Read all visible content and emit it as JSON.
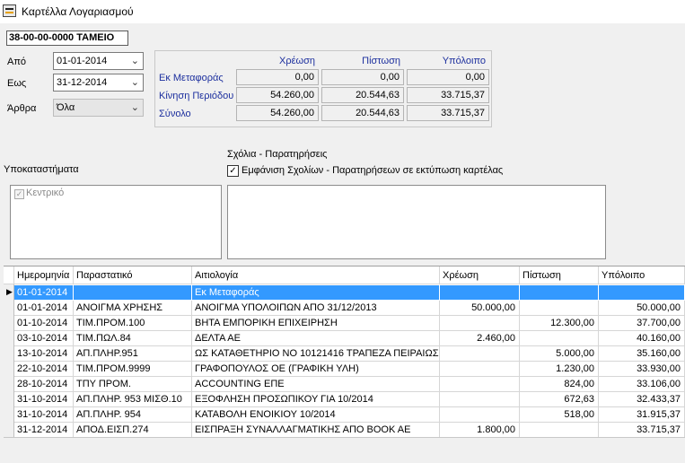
{
  "window": {
    "title": "Καρτέλλα Λογαριασμού",
    "icon": "ledger-icon"
  },
  "account": {
    "code": "38-00-00-0000 ΤΑΜΕΙΟ"
  },
  "filters": {
    "from": {
      "label": "Από",
      "value": "01-01-2014"
    },
    "to": {
      "label": "Εως",
      "value": "31-12-2014"
    },
    "articles": {
      "label": "Άρθρα",
      "value": "Όλα"
    }
  },
  "totals": {
    "headers": [
      "Χρέωση",
      "Πίστωση",
      "Υπόλοιπο"
    ],
    "rows": [
      {
        "label": "Εκ Μεταφοράς",
        "values": [
          "0,00",
          "0,00",
          "0,00"
        ]
      },
      {
        "label": "Κίνηση Περιόδου",
        "values": [
          "54.260,00",
          "20.544,63",
          "33.715,37"
        ]
      },
      {
        "label": "Σύνολο",
        "values": [
          "54.260,00",
          "20.544,63",
          "33.715,37"
        ]
      }
    ]
  },
  "comments": {
    "label": "Σχόλια - Παρατηρήσεις",
    "checkbox_label": "Εμφάνιση Σχολίων - Παρατηρήσεων σε εκτύπωση καρτέλας",
    "checked": true
  },
  "branches": {
    "label": "Υποκαταστήματα",
    "items": [
      "Κεντρικό"
    ]
  },
  "grid": {
    "headers": [
      "Ημερομηνία",
      "Παραστατικό",
      "Αιτιολογία",
      "Χρέωση",
      "Πίστωση",
      "Υπόλοιπο"
    ],
    "rows": [
      [
        "01-01-2014",
        "",
        "Εκ Μεταφοράς",
        "",
        "",
        ""
      ],
      [
        "01-01-2014",
        "ΑΝΟΙΓΜΑ ΧΡΗΣΗΣ",
        "ΑΝΟΙΓΜΑ ΥΠΟΛΟΙΠΩΝ ΑΠΟ 31/12/2013",
        "50.000,00",
        "",
        "50.000,00"
      ],
      [
        "01-10-2014",
        "ΤΙΜ.ΠΡΟΜ.100",
        "ΒΗΤΑ ΕΜΠΟΡΙΚΗ ΕΠΙΧΕΙΡΗΣΗ",
        "",
        "12.300,00",
        "37.700,00"
      ],
      [
        "03-10-2014",
        "ΤΙΜ.ΠΩΛ.84",
        "ΔΕΛΤΑ ΑΕ",
        "2.460,00",
        "",
        "40.160,00"
      ],
      [
        "13-10-2014",
        "ΑΠ.ΠΛΗΡ.951",
        "ΩΣ ΚΑΤΑΘΕΤΗΡΙΟ ΝΟ 10121416 ΤΡΑΠΕΖΑ ΠΕΙΡΑΙΩΣ",
        "",
        "5.000,00",
        "35.160,00"
      ],
      [
        "22-10-2014",
        "ΤΙΜ.ΠΡΟΜ.9999",
        "ΓΡΑΦΟΠΟΥΛΟΣ ΟΕ (ΓΡΑΦΙΚΗ ΥΛΗ)",
        "",
        "1.230,00",
        "33.930,00"
      ],
      [
        "28-10-2014",
        "ΤΠΥ ΠΡΟΜ.",
        "ACCOUNTING ΕΠΕ",
        "",
        "824,00",
        "33.106,00"
      ],
      [
        "31-10-2014",
        "ΑΠ.ΠΛΗΡ. 953 ΜΙΣΘ.10",
        "ΕΞΟΦΛΗΣΗ ΠΡΟΣΩΠΙΚΟΥ ΓΙΑ 10/2014",
        "",
        "672,63",
        "32.433,37"
      ],
      [
        "31-10-2014",
        "ΑΠ.ΠΛΗΡ. 954",
        "ΚΑΤΑΒΟΛΗ ΕΝΟΙΚΙΟΥ 10/2014",
        "",
        "518,00",
        "31.915,37"
      ],
      [
        "31-12-2014",
        "ΑΠΟΔ.ΕΙΣΠ.274",
        "ΕΙΣΠΡΑΞΗ ΣΥΝΑΛΛΑΓΜΑΤΙΚΗΣ ΑΠΟ ΒΟΟΚ ΑΕ",
        "1.800,00",
        "",
        "33.715,37"
      ]
    ],
    "selected_row": 0
  }
}
